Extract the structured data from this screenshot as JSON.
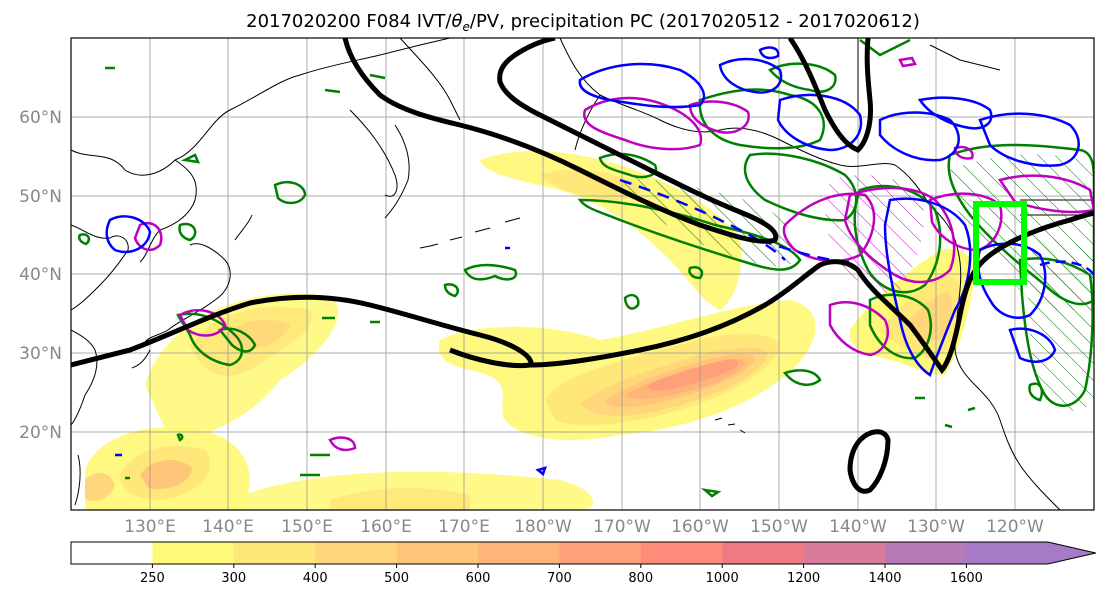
{
  "title": {
    "prefix": "2017020200 F084 IVT/",
    "theta": "θ",
    "theta_sub": "e",
    "suffix": "/PV, precipitation PC (2017020512 - 2017020612)"
  },
  "lat_labels": [
    "60°N",
    "50°N",
    "40°N",
    "30°N",
    "20°N"
  ],
  "lon_labels": [
    "130°E",
    "140°E",
    "150°E",
    "160°E",
    "170°E",
    "180°W",
    "170°W",
    "160°W",
    "150°W",
    "140°W",
    "130°W",
    "120°W"
  ],
  "colorbar": {
    "ticks": [
      "250",
      "300",
      "400",
      "500",
      "600",
      "700",
      "800",
      "1000",
      "1200",
      "1400",
      "1600"
    ],
    "colors": [
      "#ffffff",
      "#fff97a",
      "#ffe77a",
      "#ffd67a",
      "#ffc67a",
      "#ffb57a",
      "#ffa07a",
      "#ff8c7a",
      "#f07a84",
      "#d87a9a",
      "#b67ab8",
      "#a67ac6"
    ]
  },
  "colors": {
    "ivt_contour": "#000000",
    "theta_contour": "#008000",
    "pv_blue": "#0000ff",
    "pv_magenta": "#bf00bf",
    "region_box": "#00ff00",
    "grid": "#999999"
  },
  "chart_data": {
    "type": "map",
    "projection": "PlateCarree",
    "lon_range": [
      "120°E",
      "110°W"
    ],
    "lat_range": [
      "10°N",
      "70°N"
    ],
    "fill_variable": "IVT",
    "contour_variables": [
      "theta_e",
      "PV"
    ],
    "grid": true,
    "highlight_box": {
      "lon": [
        "125°W",
        "119°W"
      ],
      "lat": [
        "39°N",
        "49°N"
      ]
    }
  }
}
